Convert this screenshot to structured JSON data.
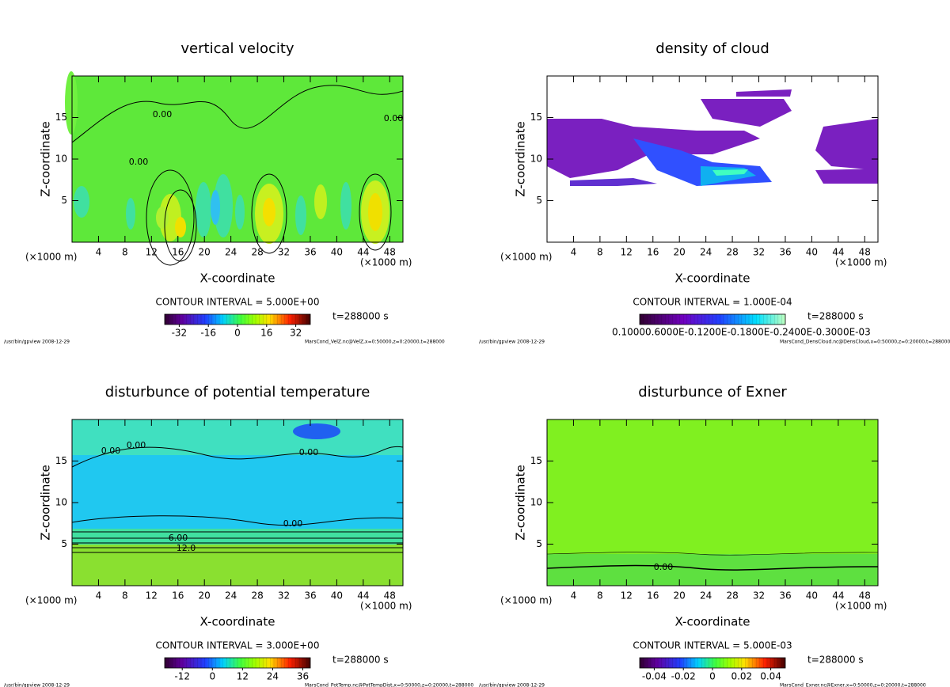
{
  "chart_data": [
    {
      "type": "contour",
      "title": "vertical velocity",
      "xlabel": "X-coordinate",
      "ylabel": "Z-coordinate",
      "x_unit": "(×1000 m)",
      "xlim": [
        0,
        50
      ],
      "ylim": [
        0,
        20
      ],
      "xticks": [
        4,
        8,
        12,
        16,
        20,
        24,
        28,
        32,
        36,
        40,
        44,
        48
      ],
      "yticks": [
        5,
        10,
        15
      ],
      "contour_interval": "CONTOUR INTERVAL = 5.000E+00",
      "time_label": "t=288000 s",
      "colorbar": {
        "lim": [
          -40,
          40
        ],
        "ticks": [
          -32,
          -16,
          0,
          16,
          32
        ]
      },
      "footer_left": "/usr/bin/gpview  2008-12-29",
      "footer_right": "MarsCond_VelZ.nc@VelZ,x=0:50000,z=0:20000,t=288000",
      "annotations": [
        "0.00",
        "0.00",
        "0.00"
      ]
    },
    {
      "type": "contour",
      "title": "density of cloud",
      "xlabel": "X-coordinate",
      "ylabel": "Z-coordinate",
      "x_unit": "(×1000 m)",
      "xlim": [
        0,
        50
      ],
      "ylim": [
        0,
        20
      ],
      "xticks": [
        4,
        8,
        12,
        16,
        20,
        24,
        28,
        32,
        36,
        40,
        44,
        48
      ],
      "yticks": [
        5,
        10,
        15
      ],
      "contour_interval": "CONTOUR INTERVAL = 1.000E-04",
      "time_label": "t=288000 s",
      "colorbar": {
        "label": "0.10000.6000E-0.1200E-0.1800E-0.2400E-0.3000E-03"
      },
      "footer_left": "/usr/bin/gpview  2008-12-29",
      "footer_right": "MarsCond_DensCloud.nc@DensCloud,x=0:50000,z=0:20000,t=288000",
      "annotations": []
    },
    {
      "type": "contour",
      "title": "disturbunce of potential temperature",
      "xlabel": "X-coordinate",
      "ylabel": "Z-coordinate",
      "x_unit": "(×1000 m)",
      "xlim": [
        0,
        50
      ],
      "ylim": [
        0,
        20
      ],
      "xticks": [
        4,
        8,
        12,
        16,
        20,
        24,
        28,
        32,
        36,
        40,
        44,
        48
      ],
      "yticks": [
        5,
        10,
        15
      ],
      "contour_interval": "CONTOUR INTERVAL = 3.000E+00",
      "time_label": "t=288000 s",
      "colorbar": {
        "lim": [
          -19,
          39
        ],
        "ticks": [
          -12,
          0,
          12,
          24,
          36
        ]
      },
      "footer_left": "/usr/bin/gpview  2008-12-29",
      "footer_right": "MarsCond_PotTemp.nc@PotTempDist,x=0:50000,z=0:20000,t=288000",
      "annotations": [
        "0.00",
        "0.00",
        "0.00",
        "0.00",
        "6.00",
        "12.0"
      ]
    },
    {
      "type": "contour",
      "title": "disturbunce of Exner",
      "xlabel": "X-coordinate",
      "ylabel": "Z-coordinate",
      "x_unit": "(×1000 m)",
      "xlim": [
        0,
        50
      ],
      "ylim": [
        0,
        20
      ],
      "xticks": [
        4,
        8,
        12,
        16,
        20,
        24,
        28,
        32,
        36,
        40,
        44,
        48
      ],
      "yticks": [
        5,
        10,
        15
      ],
      "contour_interval": "CONTOUR INTERVAL = 5.000E-03",
      "time_label": "t=288000 s",
      "colorbar": {
        "lim": [
          -0.05,
          0.05
        ],
        "ticks": [
          -0.04,
          -0.02,
          0,
          0.02,
          0.04
        ]
      },
      "footer_left": "/usr/bin/gpview  2008-12-29",
      "footer_right": "MarsCond_Exner.nc@Exner,x=0:50000,z=0:20000,t=288000",
      "annotations": [
        "0.00"
      ]
    }
  ]
}
